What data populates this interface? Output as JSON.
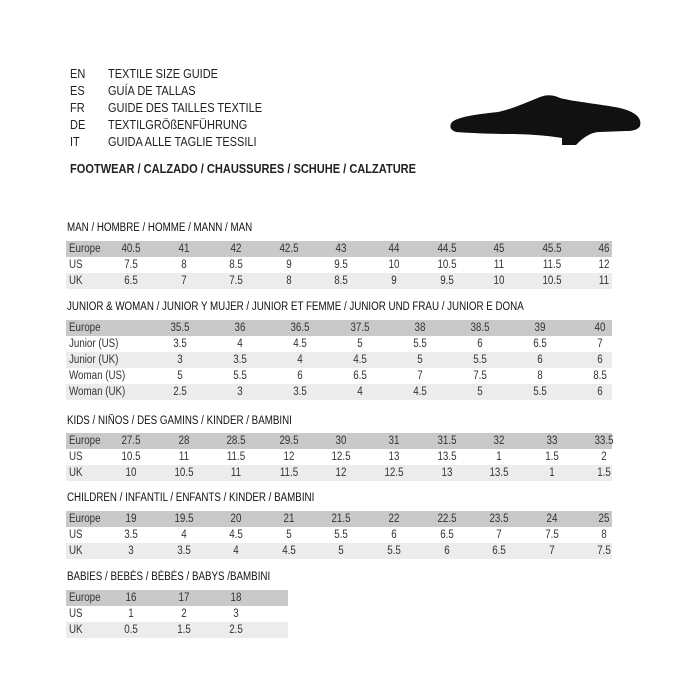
{
  "header": {
    "languages": [
      {
        "code": "EN",
        "title": "TEXTILE SIZE GUIDE"
      },
      {
        "code": "ES",
        "title": "GUÍA DE TALLAS"
      },
      {
        "code": "FR",
        "title": "GUIDE DES TAILLES TEXTILE"
      },
      {
        "code": "DE",
        "title": "TEXTILGRÖßENFÜHRUNG"
      },
      {
        "code": "IT",
        "title": "GUIDA ALLE TAGLIE TESSILI"
      }
    ],
    "footwear": "FOOTWEAR / CALZADO / CHAUSSURES / SCHUHE / CALZATURE",
    "icon": "shoe-icon",
    "colors": {
      "header_row": "#c9c9c9",
      "alt_row": "#ececec"
    }
  },
  "sections": [
    {
      "title": "MAN / HOMBRE / HOMME / MANN / MAN",
      "rows": [
        {
          "label": "Europe",
          "values": [
            "40.5",
            "41",
            "42",
            "42.5",
            "43",
            "44",
            "44.5",
            "45",
            "45.5",
            "46"
          ]
        },
        {
          "label": "US",
          "values": [
            "7.5",
            "8",
            "8.5",
            "9",
            "9.5",
            "10",
            "10.5",
            "11",
            "11.5",
            "12"
          ]
        },
        {
          "label": "UK",
          "values": [
            "6.5",
            "7",
            "7.5",
            "8",
            "8.5",
            "9",
            "9.5",
            "10",
            "10.5",
            "11"
          ]
        }
      ]
    },
    {
      "title": "JUNIOR & WOMAN / JUNIOR Y MUJER / JUNIOR ET FEMME / JUNIOR UND FRAU / JUNIOR E DONA",
      "rows": [
        {
          "label": "Europe",
          "values": [
            "35.5",
            "36",
            "36.5",
            "37.5",
            "38",
            "38.5",
            "39",
            "40"
          ]
        },
        {
          "label": "Junior (US)",
          "values": [
            "3.5",
            "4",
            "4.5",
            "5",
            "5.5",
            "6",
            "6.5",
            "7"
          ]
        },
        {
          "label": "Junior (UK)",
          "values": [
            "3",
            "3.5",
            "4",
            "4.5",
            "5",
            "5.5",
            "6",
            "6"
          ]
        },
        {
          "label": "Woman (US)",
          "values": [
            "5",
            "5.5",
            "6",
            "6.5",
            "7",
            "7.5",
            "8",
            "8.5"
          ]
        },
        {
          "label": "Woman (UK)",
          "values": [
            "2.5",
            "3",
            "3.5",
            "4",
            "4.5",
            "5",
            "5.5",
            "6"
          ]
        }
      ]
    },
    {
      "title": "KIDS / NIÑOS / DES GAMINS / KINDER / BAMBINI",
      "rows": [
        {
          "label": "Europe",
          "values": [
            "27.5",
            "28",
            "28.5",
            "29.5",
            "30",
            "31",
            "31.5",
            "32",
            "33",
            "33.5"
          ]
        },
        {
          "label": "US",
          "values": [
            "10.5",
            "11",
            "11.5",
            "12",
            "12.5",
            "13",
            "13.5",
            "1",
            "1.5",
            "2"
          ]
        },
        {
          "label": "UK",
          "values": [
            "10",
            "10.5",
            "11",
            "11.5",
            "12",
            "12.5",
            "13",
            "13.5",
            "1",
            "1.5"
          ]
        }
      ]
    },
    {
      "title": "CHILDREN / INFANTIL / ENFANTS / KINDER / BAMBINI",
      "rows": [
        {
          "label": "Europe",
          "values": [
            "19",
            "19.5",
            "20",
            "21",
            "21.5",
            "22",
            "22.5",
            "23.5",
            "24",
            "25"
          ]
        },
        {
          "label": "US",
          "values": [
            "3.5",
            "4",
            "4.5",
            "5",
            "5.5",
            "6",
            "6.5",
            "7",
            "7.5",
            "8"
          ]
        },
        {
          "label": "UK",
          "values": [
            "3",
            "3.5",
            "4",
            "4.5",
            "5",
            "5.5",
            "6",
            "6.5",
            "7",
            "7.5"
          ]
        }
      ]
    },
    {
      "title": "BABIES  / BEBÉS / BÉBÉS / BABYS /BAMBINI",
      "rows": [
        {
          "label": "Europe",
          "values": [
            "16",
            "17",
            "18"
          ]
        },
        {
          "label": "US",
          "values": [
            "1",
            "2",
            "3"
          ]
        },
        {
          "label": "UK",
          "values": [
            "0.5",
            "1.5",
            "2.5"
          ]
        }
      ]
    }
  ]
}
